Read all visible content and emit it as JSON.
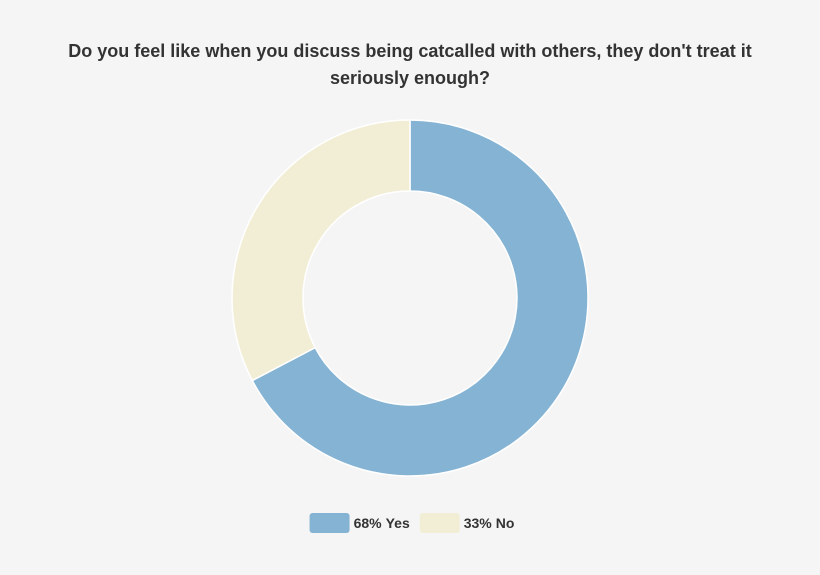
{
  "chart_data": {
    "type": "donut",
    "title": "Do you feel like when you discuss being catcalled with others, they don't treat it seriously enough?",
    "categories": [
      "Yes",
      "No"
    ],
    "values": [
      68,
      33
    ],
    "value_labels": [
      "68%",
      "33%"
    ],
    "colors": [
      "#85b3d3",
      "#f2eed6"
    ],
    "legend": "bottom"
  }
}
